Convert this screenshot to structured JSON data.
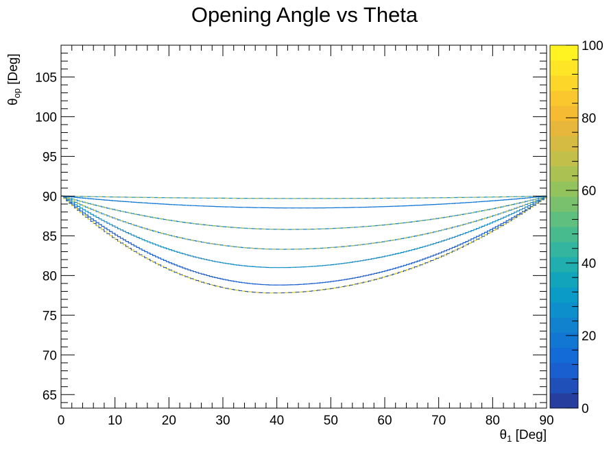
{
  "chart_data": {
    "type": "line",
    "title": "Opening Angle vs Theta",
    "xlabel": {
      "symbol": "θ",
      "subscript": "1",
      "unit": " [Deg]"
    },
    "ylabel": {
      "symbol": "θ",
      "subscript": "op",
      "unit": " [Deg]"
    },
    "xlim": [
      0,
      90
    ],
    "ylim": [
      63.3,
      109.0
    ],
    "x_ticks": [
      "0",
      "10",
      "20",
      "30",
      "40",
      "50",
      "60",
      "70",
      "80",
      "90"
    ],
    "y_ticks": [
      "65",
      "70",
      "75",
      "80",
      "85",
      "90",
      "95",
      "100",
      "105"
    ],
    "colorbar": {
      "range": [
        0,
        100
      ],
      "ticks": [
        "0",
        "20",
        "40",
        "60",
        "80",
        "100"
      ],
      "palette": [
        "#263f9f",
        "#1f4fb8",
        "#1a5fcf",
        "#136bd8",
        "#1277d3",
        "#1182cd",
        "#0c8fcb",
        "#0a9bc6",
        "#11a4bb",
        "#20aeae",
        "#33b59f",
        "#48bb8e",
        "#5fbf7e",
        "#79c16d",
        "#93c35d",
        "#abc253",
        "#c2bf4b",
        "#d5bb42",
        "#e6b73a",
        "#f5bb33",
        "#fac82e",
        "#fcd72a",
        "#fee526",
        "#fff322"
      ]
    },
    "series": [
      {
        "min_y": 89.7,
        "min_x": 45,
        "color": "#c2bf4b",
        "edge_color": "#0c8fcb"
      },
      {
        "min_y": 88.5,
        "min_x": 44,
        "color": "#1277d3",
        "edge_color": "#1277d3"
      },
      {
        "min_y": 85.8,
        "min_x": 42,
        "color": "#abc253",
        "edge_color": "#1182cd"
      },
      {
        "min_y": 83.3,
        "min_x": 41,
        "color": "#c2bf4b",
        "edge_color": "#1182cd"
      },
      {
        "min_y": 81.0,
        "min_x": 40,
        "color": "#1fa9b5",
        "edge_color": "#1277d3"
      },
      {
        "min_y": 78.8,
        "min_x": 40,
        "color": "#1a5fcf",
        "edge_color": "#1a5fcf"
      },
      {
        "min_y": 77.8,
        "min_x": 39,
        "color": "#1f4fb8",
        "edge_color": "#d8cc30"
      }
    ]
  }
}
